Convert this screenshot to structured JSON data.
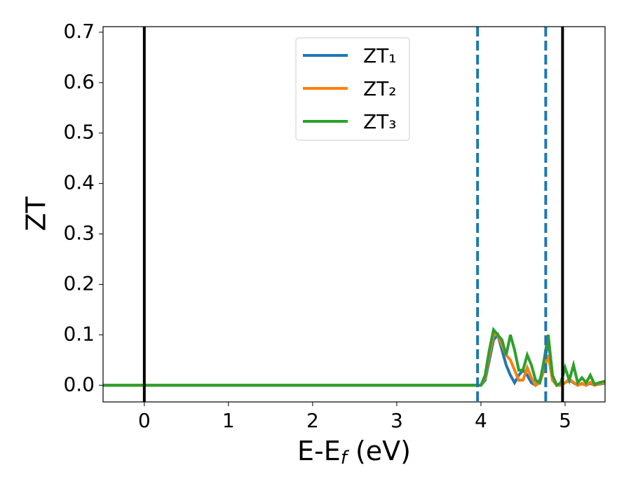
{
  "chart_data": {
    "type": "line",
    "ylabel": "ZT",
    "xlabel": {
      "main": "E-E",
      "sub": "f",
      "tail": " (eV)"
    },
    "x": [
      -0.49,
      3.9,
      4.0,
      4.05,
      4.1,
      4.15,
      4.2,
      4.25,
      4.3,
      4.35,
      4.4,
      4.45,
      4.5,
      4.55,
      4.6,
      4.65,
      4.7,
      4.75,
      4.8,
      4.85,
      4.9,
      4.95,
      5.0,
      5.05,
      5.1,
      5.15,
      5.2,
      5.25,
      5.3,
      5.35,
      5.4,
      5.475
    ],
    "series": [
      {
        "name": "ZT₁",
        "color": "#1f77b4",
        "values": [
          0,
          0,
          0,
          0.01,
          0.05,
          0.09,
          0.1,
          0.07,
          0.04,
          0.02,
          0.005,
          0.02,
          0.03,
          0.02,
          0.005,
          0,
          0.01,
          0.04,
          0.09,
          0.02,
          0,
          0,
          0.005,
          0.01,
          0.005,
          0,
          0.003,
          0,
          0.004,
          0,
          0.002,
          0.004
        ]
      },
      {
        "name": "ZT₂",
        "color": "#ff7f0e",
        "values": [
          0,
          0,
          0,
          0.015,
          0.06,
          0.1,
          0.1,
          0.08,
          0.06,
          0.05,
          0.03,
          0.01,
          0.01,
          0.035,
          0.015,
          0,
          0.005,
          0.03,
          0.06,
          0.01,
          0,
          0,
          0.005,
          0.012,
          0.006,
          0,
          0.004,
          0,
          0.006,
          0,
          0.003,
          0.005
        ]
      },
      {
        "name": "ZT₃",
        "color": "#2ca02c",
        "values": [
          0,
          0,
          0,
          0.02,
          0.07,
          0.11,
          0.1,
          0.09,
          0.06,
          0.1,
          0.07,
          0.03,
          0.03,
          0.06,
          0.04,
          0.01,
          0.005,
          0.05,
          0.1,
          0.02,
          0,
          0.005,
          0.035,
          0.01,
          0.04,
          0.005,
          0.015,
          0.005,
          0.02,
          0.002,
          0.005,
          0.008
        ]
      }
    ],
    "vlines": [
      {
        "x": 0,
        "color": "#000000",
        "style": "solid"
      },
      {
        "x": 4.97,
        "color": "#000000",
        "style": "solid"
      },
      {
        "x": 3.96,
        "color": "#1f77b4",
        "style": "dashed"
      },
      {
        "x": 4.77,
        "color": "#1f77b4",
        "style": "dashed"
      }
    ],
    "xlim": [
      -0.49,
      5.475
    ],
    "ylim": [
      -0.033,
      0.711
    ],
    "xticks": [
      0,
      1,
      2,
      3,
      4,
      5
    ],
    "yticks": [
      {
        "value": 0,
        "label": "0.0"
      },
      0.1,
      0.2,
      0.3,
      0.4,
      0.5,
      0.6,
      0.7
    ],
    "legend": "upper center"
  }
}
